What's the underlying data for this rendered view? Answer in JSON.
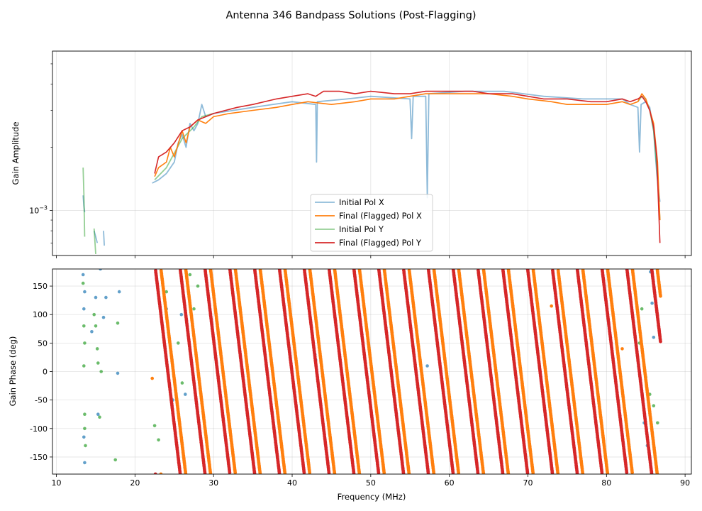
{
  "figure_title": "Antenna 346 Bandpass Solutions (Post-Flagging)",
  "colors": {
    "initial_x": "#1f77b4",
    "final_x": "#ff7f0e",
    "initial_y": "#2ca02c",
    "final_y": "#d62728"
  },
  "chart_data": [
    {
      "type": "line",
      "title": "",
      "xlabel": "",
      "ylabel": "Gain Amplitude",
      "yscale": "log",
      "xlim": [
        9.5,
        90.8
      ],
      "ylim": [
        0.00061,
        0.00575
      ],
      "ytick_major": [
        {
          "value": 0.001,
          "base": "10",
          "exp": "−3"
        }
      ],
      "ytick_minor": [
        0.0007,
        0.0008,
        0.0009,
        0.002,
        0.003,
        0.004,
        0.005
      ],
      "grid": true,
      "legend_position": "lower-center",
      "legend": [
        {
          "label": "Initial Pol X",
          "color": "#1f77b4",
          "alpha": 0.5
        },
        {
          "label": "Final (Flagged) Pol X",
          "color": "#ff7f0e",
          "alpha": 1
        },
        {
          "label": "Initial Pol Y",
          "color": "#2ca02c",
          "alpha": 0.5
        },
        {
          "label": "Final (Flagged) Pol Y",
          "color": "#d62728",
          "alpha": 1
        }
      ],
      "series": [
        {
          "name": "Initial Pol X",
          "segments": [
            [
              [
                13.4,
                0.00118
              ],
              [
                13.5,
                0.00105
              ],
              [
                13.6,
                0.00098
              ]
            ],
            [
              [
                14.8,
                0.0008
              ],
              [
                15.0,
                0.00075
              ],
              [
                15.2,
                0.0007
              ]
            ],
            [
              [
                16.0,
                0.0008
              ],
              [
                16.1,
                0.00068
              ]
            ],
            [
              [
                22.2,
                0.00135
              ],
              [
                23.0,
                0.0014
              ],
              [
                24.0,
                0.0015
              ],
              [
                25.0,
                0.0017
              ],
              [
                25.5,
                0.0021
              ],
              [
                26.0,
                0.0023
              ],
              [
                26.5,
                0.002
              ],
              [
                27.0,
                0.0026
              ],
              [
                27.5,
                0.0024
              ],
              [
                28.0,
                0.0026
              ],
              [
                28.5,
                0.0032
              ],
              [
                29.0,
                0.0028
              ],
              [
                30.0,
                0.0029
              ],
              [
                35.0,
                0.0031
              ],
              [
                40.0,
                0.0033
              ],
              [
                43.0,
                0.0032
              ],
              [
                43.1,
                0.0017
              ],
              [
                43.2,
                0.0033
              ],
              [
                47.0,
                0.0034
              ],
              [
                50.0,
                0.0035
              ],
              [
                55.0,
                0.0034
              ],
              [
                55.2,
                0.0022
              ],
              [
                55.4,
                0.0035
              ],
              [
                57.0,
                0.0035
              ],
              [
                57.2,
                0.00115
              ],
              [
                57.4,
                0.0036
              ],
              [
                62.0,
                0.0037
              ],
              [
                67.0,
                0.0037
              ],
              [
                72.0,
                0.0035
              ],
              [
                77.0,
                0.0034
              ],
              [
                82.0,
                0.0034
              ],
              [
                83.0,
                0.0032
              ],
              [
                84.0,
                0.0031
              ],
              [
                84.2,
                0.0019
              ],
              [
                84.4,
                0.0032
              ],
              [
                85.0,
                0.0033
              ],
              [
                85.5,
                0.0031
              ],
              [
                86.0,
                0.0024
              ],
              [
                86.4,
                0.0015
              ],
              [
                86.8,
                0.0011
              ]
            ]
          ]
        },
        {
          "name": "Initial Pol Y",
          "segments": [
            [
              [
                13.4,
                0.0016
              ],
              [
                13.5,
                0.0012
              ],
              [
                13.6,
                0.00075
              ]
            ],
            [
              [
                14.8,
                0.00082
              ],
              [
                15.0,
                0.00062
              ]
            ],
            [
              [
                22.5,
                0.0014
              ],
              [
                24.0,
                0.0016
              ],
              [
                26.0,
                0.0022
              ],
              [
                27.5,
                0.0025
              ],
              [
                28.5,
                0.0028
              ],
              [
                30.0,
                0.0029
              ]
            ],
            [
              [
                84.0,
                0.0033
              ],
              [
                84.5,
                0.0035
              ],
              [
                85.0,
                0.0034
              ],
              [
                85.5,
                0.003
              ],
              [
                86.0,
                0.0024
              ],
              [
                86.4,
                0.0016
              ],
              [
                86.8,
                0.0009
              ]
            ]
          ]
        },
        {
          "name": "Final (Flagged) Pol X",
          "segments": [
            [
              [
                22.5,
                0.00145
              ],
              [
                23.0,
                0.0016
              ],
              [
                24.0,
                0.0017
              ],
              [
                24.5,
                0.002
              ],
              [
                25.0,
                0.0018
              ],
              [
                26.0,
                0.0024
              ],
              [
                26.5,
                0.0021
              ],
              [
                27.0,
                0.0025
              ],
              [
                28.0,
                0.0027
              ],
              [
                29.0,
                0.0026
              ],
              [
                30.0,
                0.0028
              ],
              [
                32.0,
                0.0029
              ],
              [
                35.0,
                0.003
              ],
              [
                38.0,
                0.0031
              ],
              [
                40.0,
                0.0032
              ],
              [
                42.0,
                0.0033
              ],
              [
                45.0,
                0.0032
              ],
              [
                48.0,
                0.0033
              ],
              [
                50.0,
                0.0034
              ],
              [
                53.0,
                0.0034
              ],
              [
                55.0,
                0.0035
              ],
              [
                57.0,
                0.0036
              ],
              [
                60.0,
                0.0036
              ],
              [
                63.0,
                0.0036
              ],
              [
                65.0,
                0.0036
              ],
              [
                68.0,
                0.0035
              ],
              [
                70.0,
                0.0034
              ],
              [
                73.0,
                0.0033
              ],
              [
                75.0,
                0.0032
              ],
              [
                78.0,
                0.0032
              ],
              [
                80.0,
                0.0032
              ],
              [
                82.0,
                0.0033
              ],
              [
                83.0,
                0.0032
              ],
              [
                84.0,
                0.0033
              ],
              [
                84.5,
                0.0036
              ],
              [
                85.0,
                0.0034
              ],
              [
                85.5,
                0.003
              ],
              [
                86.0,
                0.0026
              ],
              [
                86.5,
                0.0017
              ],
              [
                86.8,
                0.0009
              ]
            ]
          ]
        },
        {
          "name": "Final (Flagged) Pol Y",
          "segments": [
            [
              [
                22.5,
                0.0015
              ],
              [
                23.0,
                0.0018
              ],
              [
                24.0,
                0.0019
              ],
              [
                25.0,
                0.0021
              ],
              [
                26.0,
                0.0024
              ],
              [
                27.0,
                0.0025
              ],
              [
                28.0,
                0.0027
              ],
              [
                30.0,
                0.0029
              ],
              [
                33.0,
                0.0031
              ],
              [
                35.0,
                0.0032
              ],
              [
                38.0,
                0.0034
              ],
              [
                40.0,
                0.0035
              ],
              [
                42.0,
                0.0036
              ],
              [
                43.0,
                0.0035
              ],
              [
                44.0,
                0.0037
              ],
              [
                46.0,
                0.0037
              ],
              [
                48.0,
                0.0036
              ],
              [
                50.0,
                0.0037
              ],
              [
                53.0,
                0.0036
              ],
              [
                55.0,
                0.0036
              ],
              [
                57.0,
                0.0037
              ],
              [
                60.0,
                0.0037
              ],
              [
                63.0,
                0.0037
              ],
              [
                65.0,
                0.0036
              ],
              [
                68.0,
                0.0036
              ],
              [
                70.0,
                0.0035
              ],
              [
                72.0,
                0.0034
              ],
              [
                75.0,
                0.0034
              ],
              [
                78.0,
                0.0033
              ],
              [
                80.0,
                0.0033
              ],
              [
                82.0,
                0.0034
              ],
              [
                83.0,
                0.0033
              ],
              [
                84.0,
                0.0034
              ],
              [
                84.5,
                0.0035
              ],
              [
                85.0,
                0.0033
              ],
              [
                85.5,
                0.003
              ],
              [
                86.0,
                0.0025
              ],
              [
                86.4,
                0.0018
              ],
              [
                86.8,
                0.0007
              ]
            ]
          ]
        }
      ]
    },
    {
      "type": "scatter",
      "title": "",
      "xlabel": "Frequency (MHz)",
      "ylabel": "Gain Phase (deg)",
      "xlim": [
        9.5,
        90.8
      ],
      "ylim": [
        -180,
        180
      ],
      "xticks": [
        10,
        20,
        30,
        40,
        50,
        60,
        70,
        80,
        90
      ],
      "yticks": [
        -150,
        -100,
        -50,
        0,
        50,
        100,
        150
      ],
      "grid": true,
      "phase_model": {
        "description": "Phase wraps linearly with frequency; approx -4.8 wraps per 15 MHz",
        "slope_deg_per_mhz": -114,
        "final_x_start_mhz": 23.3,
        "final_y_start_mhz": 22.6,
        "end_mhz": 86.9,
        "step_mhz": 0.025
      },
      "sparse_points": {
        "initial_x": [
          [
            13.4,
            170
          ],
          [
            13.5,
            110
          ],
          [
            13.6,
            140
          ],
          [
            13.5,
            -115
          ],
          [
            13.6,
            -160
          ],
          [
            14.5,
            70
          ],
          [
            15.0,
            130
          ],
          [
            15.3,
            -75
          ],
          [
            15.6,
            180
          ],
          [
            16.0,
            95
          ],
          [
            16.3,
            130
          ],
          [
            17.8,
            -3
          ],
          [
            18.0,
            140
          ],
          [
            24.0,
            110
          ],
          [
            24.8,
            -50
          ],
          [
            25.9,
            100
          ],
          [
            26.4,
            -40
          ],
          [
            42.9,
            30
          ],
          [
            43.0,
            20
          ],
          [
            57.2,
            10
          ],
          [
            84.8,
            -90
          ],
          [
            85.2,
            -130
          ],
          [
            85.6,
            175
          ],
          [
            85.8,
            120
          ],
          [
            86.0,
            60
          ]
        ],
        "initial_y": [
          [
            13.4,
            155
          ],
          [
            13.5,
            80
          ],
          [
            13.6,
            50
          ],
          [
            13.5,
            10
          ],
          [
            13.6,
            -75
          ],
          [
            13.6,
            -100
          ],
          [
            13.7,
            -130
          ],
          [
            14.8,
            100
          ],
          [
            15.0,
            80
          ],
          [
            15.2,
            40
          ],
          [
            15.3,
            15
          ],
          [
            15.5,
            -80
          ],
          [
            15.7,
            0
          ],
          [
            17.5,
            -155
          ],
          [
            17.8,
            85
          ],
          [
            22.5,
            -95
          ],
          [
            23.0,
            -120
          ],
          [
            24.0,
            140
          ],
          [
            25.5,
            50
          ],
          [
            26.0,
            -20
          ],
          [
            27.0,
            170
          ],
          [
            27.5,
            110
          ],
          [
            28.0,
            150
          ],
          [
            84.2,
            50
          ],
          [
            84.5,
            110
          ],
          [
            85.0,
            -10
          ],
          [
            85.5,
            -40
          ],
          [
            86.0,
            -60
          ],
          [
            86.5,
            -90
          ]
        ],
        "final_x": [
          [
            22.2,
            -12
          ],
          [
            73.0,
            115
          ],
          [
            82.0,
            40
          ]
        ],
        "final_y": []
      }
    }
  ]
}
